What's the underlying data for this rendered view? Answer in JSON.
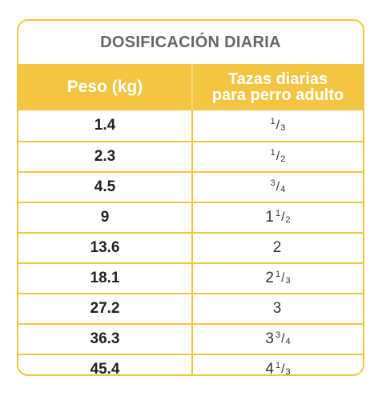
{
  "table": {
    "title": "DOSIFICACIÓN DIARIA",
    "header": {
      "col1": "Peso (kg)",
      "col2_line1": "Tazas diarias",
      "col2_line2": "para perro adulto"
    },
    "rows": [
      {
        "weight": "1.4",
        "whole": "",
        "num": "1",
        "den": "3"
      },
      {
        "weight": "2.3",
        "whole": "",
        "num": "1",
        "den": "2"
      },
      {
        "weight": "4.5",
        "whole": "",
        "num": "3",
        "den": "4"
      },
      {
        "weight": "9",
        "whole": "1",
        "num": "1",
        "den": "2"
      },
      {
        "weight": "13.6",
        "whole": "2",
        "num": "",
        "den": ""
      },
      {
        "weight": "18.1",
        "whole": "2",
        "num": "1",
        "den": "3"
      },
      {
        "weight": "27.2",
        "whole": "3",
        "num": "",
        "den": ""
      },
      {
        "weight": "36.3",
        "whole": "3",
        "num": "3",
        "den": "4"
      },
      {
        "weight": "45.4",
        "whole": "4",
        "num": "1",
        "den": "3"
      }
    ],
    "colors": {
      "accent": "#f4c542",
      "border": "#f0c53d",
      "title_text": "#666666"
    }
  }
}
